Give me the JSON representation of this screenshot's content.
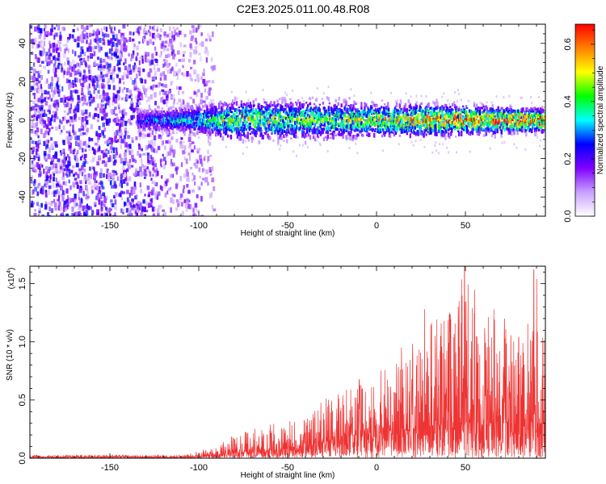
{
  "title": "C2E3.2025.011.00.48.R08",
  "chart_data": [
    {
      "type": "heatmap",
      "xlabel": "Height of straight line (km)",
      "ylabel": "Frequency (Hz)",
      "xlim": [
        -195,
        95
      ],
      "ylim": [
        -50,
        50
      ],
      "xticks": [
        -150,
        -100,
        -50,
        0,
        50
      ],
      "yticks": [
        -40,
        -20,
        0,
        20,
        40
      ],
      "colorbar": {
        "label": "Normalized spectral amplitude",
        "range": [
          0.0,
          0.67
        ],
        "ticks": [
          "0.0",
          "0.2",
          "0.4",
          "0.6"
        ],
        "colormap": "rainbow",
        "stops": [
          "#ffffff",
          "#c8a0ff",
          "#8000ff",
          "#0000ff",
          "#00ffff",
          "#00ff00",
          "#ffff00",
          "#ff8000",
          "#ff0000"
        ]
      },
      "noise_region_x": [
        -195,
        -97
      ],
      "signal_band": [
        {
          "x": -130,
          "freq_half_width": 4,
          "peak_amplitude": 0.22
        },
        {
          "x": -100,
          "freq_half_width": 6,
          "peak_amplitude": 0.3
        },
        {
          "x": -80,
          "freq_half_width": 8,
          "peak_amplitude": 0.45
        },
        {
          "x": -50,
          "freq_half_width": 8,
          "peak_amplitude": 0.4
        },
        {
          "x": -20,
          "freq_half_width": 8,
          "peak_amplitude": 0.4
        },
        {
          "x": 0,
          "freq_half_width": 7,
          "peak_amplitude": 0.45
        },
        {
          "x": 30,
          "freq_half_width": 7,
          "peak_amplitude": 0.55
        },
        {
          "x": 60,
          "freq_half_width": 6,
          "peak_amplitude": 0.58
        },
        {
          "x": 90,
          "freq_half_width": 5,
          "peak_amplitude": 0.65
        }
      ]
    },
    {
      "type": "line",
      "xlabel": "Height of straight line (km)",
      "ylabel": "SNR (10 * v/v)",
      "yscale_label": "(x10",
      "yscale_exponent": "4",
      "yscale_suffix": ")",
      "xlim": [
        -195,
        95
      ],
      "ylim": [
        0,
        1.65
      ],
      "xticks": [
        -150,
        -100,
        -50,
        0,
        50
      ],
      "yticks": [
        "0.0",
        "0.5",
        "1.0",
        "1.5"
      ],
      "color": "#ee3333",
      "envelope": {
        "x": [
          -195,
          -150,
          -110,
          -100,
          -90,
          -80,
          -60,
          -40,
          -30,
          -20,
          -10,
          0,
          10,
          20,
          30,
          40,
          50,
          60,
          70,
          80,
          90,
          95
        ],
        "baseline": [
          0.01,
          0.01,
          0.01,
          0.015,
          0.03,
          0.05,
          0.07,
          0.09,
          0.14,
          0.18,
          0.2,
          0.22,
          0.24,
          0.25,
          0.27,
          0.28,
          0.3,
          0.3,
          0.3,
          0.3,
          0.3,
          0.3
        ],
        "peak": [
          0.03,
          0.03,
          0.03,
          0.06,
          0.12,
          0.2,
          0.3,
          0.35,
          0.5,
          0.6,
          0.7,
          0.72,
          0.85,
          1.0,
          1.2,
          1.25,
          1.68,
          1.25,
          1.2,
          1.05,
          1.62,
          1.2
        ]
      },
      "spikes": [
        {
          "x": 49.5,
          "y": 1.68
        },
        {
          "x": 88.5,
          "y": 1.62
        },
        {
          "x": 27,
          "y": 1.28
        },
        {
          "x": 55,
          "y": 1.25
        },
        {
          "x": 66,
          "y": 1.28
        },
        {
          "x": 72,
          "y": 1.2
        },
        {
          "x": 36,
          "y": 1.05
        },
        {
          "x": 14,
          "y": 0.95
        }
      ]
    }
  ]
}
